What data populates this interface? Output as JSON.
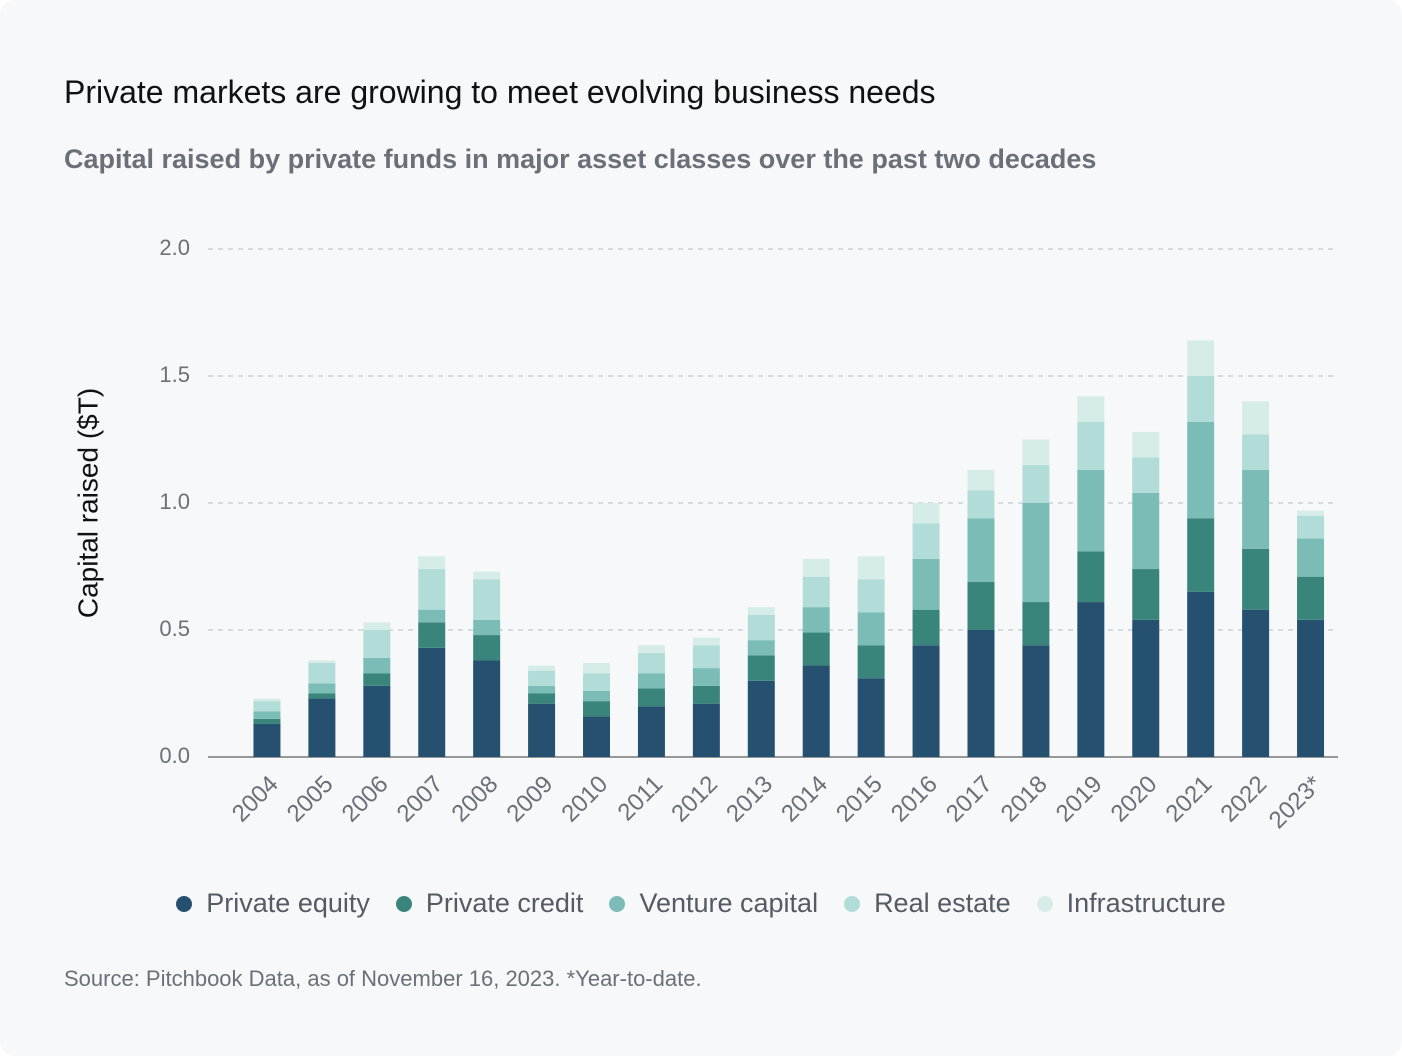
{
  "chart_data": {
    "type": "stacked_bar",
    "title": "Private markets are growing to meet evolving business needs",
    "subtitle": "Capital raised by private funds in major asset classes over the past two decades",
    "y_label": "Capital raised ($T)",
    "source": "Source: Pitchbook Data, as of November 16, 2023. *Year-to-date.",
    "categories": [
      "2004",
      "2005",
      "2006",
      "2007",
      "2008",
      "2009",
      "2010",
      "2011",
      "2012",
      "2013",
      "2014",
      "2015",
      "2016",
      "2017",
      "2018",
      "2019",
      "2020",
      "2021",
      "2022",
      "2023*"
    ],
    "series": [
      {
        "name": "Private equity",
        "color": "#26506f",
        "values": [
          0.13,
          0.23,
          0.28,
          0.43,
          0.38,
          0.21,
          0.16,
          0.2,
          0.21,
          0.3,
          0.36,
          0.31,
          0.44,
          0.5,
          0.44,
          0.61,
          0.54,
          0.65,
          0.58,
          0.54
        ]
      },
      {
        "name": "Private credit",
        "color": "#3a857b",
        "values": [
          0.02,
          0.02,
          0.05,
          0.1,
          0.1,
          0.04,
          0.06,
          0.07,
          0.07,
          0.1,
          0.13,
          0.13,
          0.14,
          0.19,
          0.17,
          0.2,
          0.2,
          0.29,
          0.24,
          0.17
        ]
      },
      {
        "name": "Venture capital",
        "color": "#7bbdb6",
        "values": [
          0.03,
          0.04,
          0.06,
          0.05,
          0.06,
          0.03,
          0.04,
          0.06,
          0.07,
          0.06,
          0.1,
          0.13,
          0.2,
          0.25,
          0.39,
          0.32,
          0.3,
          0.38,
          0.31,
          0.15
        ]
      },
      {
        "name": "Real estate",
        "color": "#b2dcd8",
        "values": [
          0.04,
          0.08,
          0.11,
          0.16,
          0.16,
          0.06,
          0.07,
          0.08,
          0.09,
          0.1,
          0.12,
          0.13,
          0.14,
          0.11,
          0.15,
          0.19,
          0.14,
          0.18,
          0.14,
          0.09
        ]
      },
      {
        "name": "Infrastructure",
        "color": "#d6ece9",
        "values": [
          0.01,
          0.01,
          0.03,
          0.05,
          0.03,
          0.02,
          0.04,
          0.03,
          0.03,
          0.03,
          0.07,
          0.09,
          0.08,
          0.08,
          0.1,
          0.1,
          0.1,
          0.14,
          0.13,
          0.02
        ]
      }
    ],
    "ylim": [
      0,
      2
    ],
    "yticks": [
      {
        "value": 0,
        "label": "0.0"
      },
      0.5,
      {
        "value": 1,
        "label": "1.0"
      },
      1.5,
      {
        "value": 2,
        "label": "2.0"
      }
    ],
    "grid": true
  }
}
